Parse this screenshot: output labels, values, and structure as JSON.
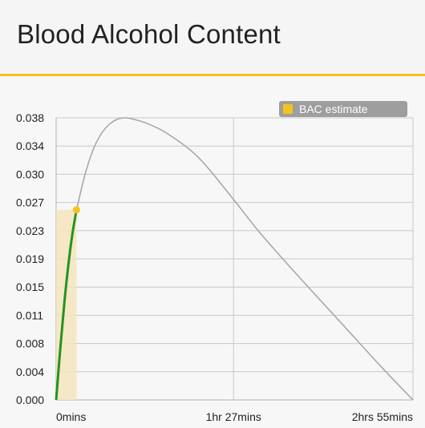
{
  "header": {
    "title": "Blood Alcohol Content"
  },
  "colors": {
    "accent": "#f6c21c",
    "projection_line": "#a8a8a8",
    "consumed_line": "#22951e",
    "marker": "#f6c21c",
    "fill": "#f6e4bd",
    "grid": "#c8c8c8",
    "legend_bg": "#9e9e9e"
  },
  "chart_data": {
    "type": "line",
    "title": "",
    "xlabel": "",
    "ylabel": "",
    "x_unit": "minutes",
    "xlim": [
      0,
      175
    ],
    "ylim": [
      0,
      0.038
    ],
    "yticks": [
      "0.000",
      "0.004",
      "0.008",
      "0.011",
      "0.015",
      "0.019",
      "0.023",
      "0.027",
      "0.030",
      "0.034",
      "0.038"
    ],
    "ytick_values": [
      0,
      0.004,
      0.008,
      0.011,
      0.015,
      0.019,
      0.023,
      0.027,
      0.03,
      0.034,
      0.038
    ],
    "xticks": [
      {
        "label": "0mins",
        "value": 0
      },
      {
        "label": "1hr 27mins",
        "value": 87
      },
      {
        "label": "2hrs 55mins",
        "value": 175
      }
    ],
    "grid": true,
    "legend": {
      "position": "top-right",
      "entries": [
        {
          "name": "BAC estimate",
          "color": "#f6c21c"
        }
      ]
    },
    "series": [
      {
        "name": "BAC estimate",
        "role": "current",
        "x": [
          0,
          2,
          4,
          6,
          8,
          10
        ],
        "y": [
          0,
          0.0068,
          0.013,
          0.0182,
          0.0224,
          0.0256
        ]
      },
      {
        "role": "projection",
        "x": [
          10,
          14,
          18,
          22,
          26,
          30,
          34,
          38,
          45,
          55,
          70,
          87,
          100,
          120,
          140,
          160,
          175
        ],
        "y": [
          0.0256,
          0.0302,
          0.0336,
          0.0358,
          0.0371,
          0.0378,
          0.038,
          0.0378,
          0.0372,
          0.0358,
          0.0326,
          0.027,
          0.0225,
          0.0163,
          0.0103,
          0.0043,
          0
        ]
      }
    ],
    "marker": {
      "x": 10,
      "y": 0.0256
    }
  }
}
